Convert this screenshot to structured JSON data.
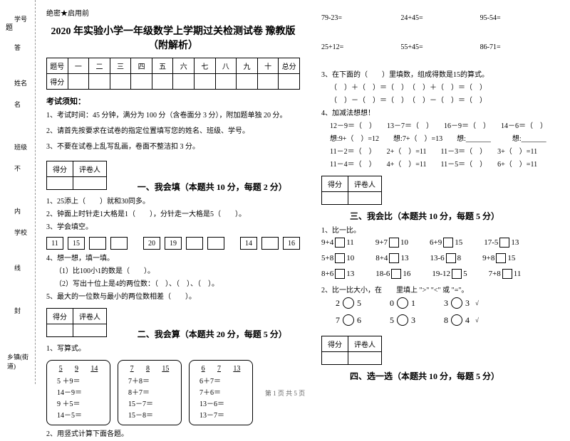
{
  "binding": {
    "labels": [
      "学号",
      "姓名",
      "班级",
      "学校",
      "乡镇(街道)"
    ],
    "marks": [
      "答",
      "名",
      "不",
      "内",
      "线",
      "封",
      ""
    ],
    "hint": "题"
  },
  "header": {
    "secret": "绝密★启用前",
    "title": "2020 年实验小学一年级数学上学期过关检测试卷 豫教版（附解析）"
  },
  "scoreTable": {
    "row1": [
      "题号",
      "一",
      "二",
      "三",
      "四",
      "五",
      "六",
      "七",
      "八",
      "九",
      "十",
      "总分"
    ],
    "row2": "得分"
  },
  "notices": {
    "heading": "考试须知：",
    "items": [
      "1、考试时间：45 分钟，满分为 100 分（含卷面分 3 分），附加题单独 20 分。",
      "2、请首先按要求在试卷的指定位置填写您的姓名、班级、学号。",
      "3、不要在试卷上乱写乱画，卷面不整洁扣 3 分。"
    ]
  },
  "scorebox": {
    "c1": "得分",
    "c2": "评卷人"
  },
  "sec1": {
    "heading": "一、我会填（本题共 10 分，每题 2 分）",
    "q1": "1、25添上（　　）就和30同多。",
    "q2": "2、钟面上时针走1大格是1（　　），分针走一大格是5（　　）。",
    "q3": "3、学会填空。",
    "boxes": [
      "11",
      "15",
      "",
      "",
      "20",
      "19",
      "",
      "",
      "14",
      "",
      "16"
    ],
    "q4h": "4、想一想，填一填。",
    "q4a": "（1）比100小1的数是（　　）。",
    "q4b": "（2）写出十位上是4的两位数：（　）、（　）、（　）。",
    "q5": "5、最大的一位数与最小的两位数相差（　　）。"
  },
  "sec2": {
    "heading": "二、我会算（本题共 20 分，每题 5 分）",
    "q1": "1、写算式。",
    "boxes": [
      {
        "head": [
          "5",
          "9",
          "14"
        ],
        "rows": [
          "5 ＋9＝",
          "14－9＝",
          "9 ＋5＝",
          "14－5＝"
        ]
      },
      {
        "head": [
          "7",
          "8",
          "15"
        ],
        "rows": [
          "7＋8＝",
          "8＋7＝",
          "15－7＝",
          "15－8＝"
        ]
      },
      {
        "head": [
          "6",
          "7",
          "13"
        ],
        "rows": [
          "6＋7＝",
          "7＋6＝",
          "13－6＝",
          "13－7＝"
        ]
      }
    ],
    "q2": "2、用竖式计算下面各题。",
    "eqsA": [
      "79-23=",
      "24+45=",
      "95-54="
    ],
    "eqsB": [
      "25+12=",
      "55+45=",
      "86-71="
    ]
  },
  "sec2b": {
    "q3": "3、在下面的（　　）里填数，组成得数是15的算式。",
    "lines": [
      "（　）＋（　）＝（　）　（　）＋（　）＝（　）",
      "（　）－（　）＝（　）　（　）－（　）＝（　）"
    ],
    "q4": "4、加减法想想！",
    "rowsA": [
      "12－9＝（　）　　13－7＝（　）　　16－9＝（　）　　14－6＝（　）"
    ],
    "rowsB": [
      "想:9+（　）=12　　想:7+（　）=13　　想:_______　　　想:_______"
    ],
    "rowsC": [
      "11－2＝（　）　　2+（　）=11　　11－3＝（　）　　3+（　）=11"
    ],
    "rowsD": [
      "11－4＝（　）　　4+（　）=11　　11－5＝（　）　　6+（　）=11"
    ]
  },
  "sec3": {
    "heading": "三、我会比（本题共 10 分，每题 5 分）",
    "q1": "1、比一比。",
    "cmps": [
      [
        [
          "9+4",
          "11"
        ],
        [
          "9+7",
          "10"
        ],
        [
          "6+9",
          "15"
        ],
        [
          "17-5",
          "13"
        ]
      ],
      [
        [
          "5+8",
          "10"
        ],
        [
          "8+4",
          "13"
        ],
        [
          "13-6",
          "8"
        ],
        [
          "9+8",
          "15"
        ]
      ],
      [
        [
          "8+6",
          "13"
        ],
        [
          "18-6",
          "16"
        ],
        [
          "19-12",
          "5"
        ],
        [
          "7+8",
          "11"
        ]
      ]
    ],
    "q2": "2、比一比大小，在　　里填上 \">\" \"<\" 或 \"=\"。",
    "circs": [
      [
        [
          "2",
          "5"
        ],
        [
          "0",
          "1"
        ],
        [
          "3",
          "3"
        ]
      ],
      [
        [
          "7",
          "6"
        ],
        [
          "5",
          "3"
        ],
        [
          "8",
          "4"
        ]
      ]
    ]
  },
  "sec4": {
    "heading": "四、选一选（本题共 10 分，每题 5 分）"
  },
  "footer": "第 1 页 共 5 页"
}
